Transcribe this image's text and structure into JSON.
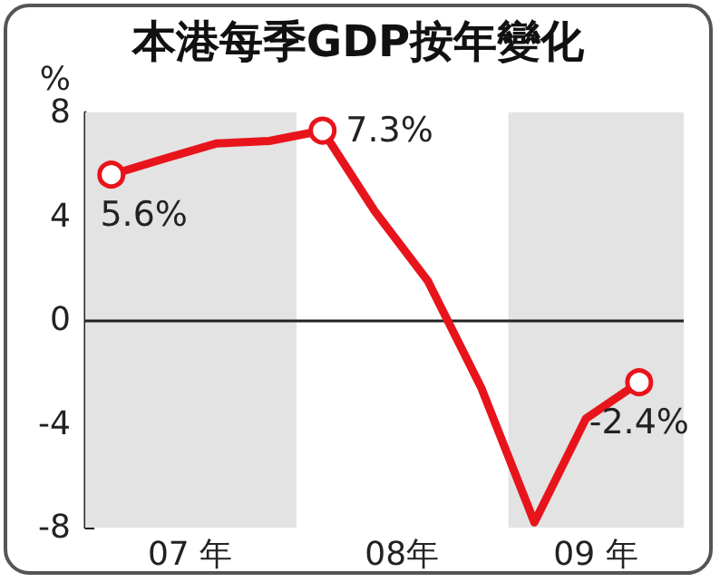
{
  "chart_data": {
    "type": "line",
    "title": "本港每季GDP按年變化",
    "ylabel": "%",
    "x": [
      "2007-02-15",
      "2007-05-15",
      "2007-08-15",
      "2007-11-15",
      "2008-02-15",
      "2008-05-15",
      "2008-08-15",
      "2008-11-15",
      "2009-02-15",
      "2009-05-15",
      "2009-08-15"
    ],
    "series": [
      {
        "color": "#e8141c",
        "values": [
          5.6,
          6.2,
          6.8,
          6.9,
          7.3,
          4.2,
          1.5,
          -2.6,
          -7.8,
          -3.8,
          -2.4
        ],
        "value_labels": [
          "5.6%",
          null,
          null,
          null,
          "7.3%",
          null,
          null,
          null,
          null,
          null,
          "-2.4%"
        ]
      }
    ],
    "xlim": [
      "2007-01-01",
      "2009-10-31"
    ],
    "xticks": [
      {
        "value": "2007-07-01",
        "label": "07 年"
      },
      {
        "value": "2008-07-01",
        "label": "08年"
      },
      {
        "value": "2009-06-01",
        "label": "09 年"
      }
    ],
    "ylim": [
      -8,
      8
    ],
    "yticks": [
      -8,
      -4,
      0,
      4,
      8
    ],
    "bands": [
      {
        "axis": "x",
        "from": "2007-01-01",
        "to": "2008-01-01",
        "color": "#e3e3e3"
      },
      {
        "axis": "x",
        "from": "2009-01-01",
        "to": "2009-10-31",
        "color": "#e3e3e3"
      }
    ],
    "ref_lines": [
      {
        "axis": "y",
        "value": 0,
        "color": "#222222"
      }
    ],
    "grid": false
  }
}
